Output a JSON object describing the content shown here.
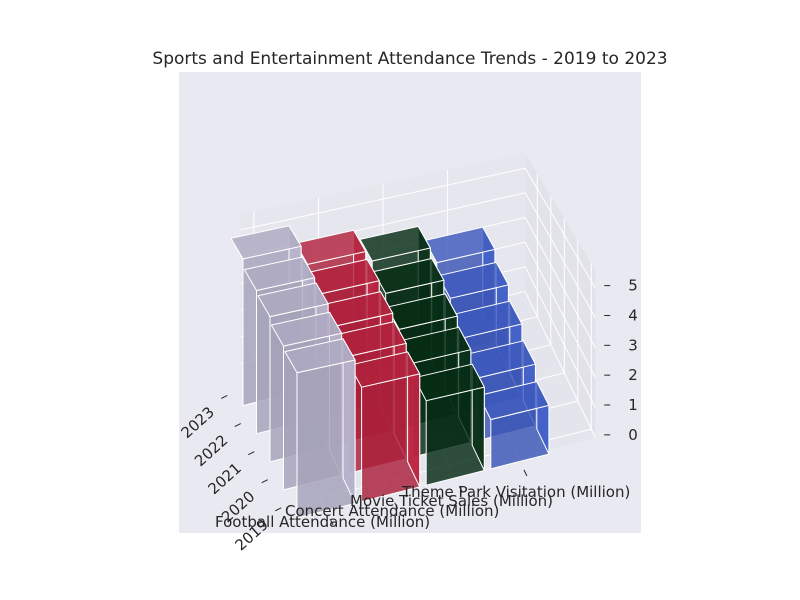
{
  "chart_data": {
    "type": "bar",
    "title": "Sports and Entertainment Attendance Trends - 2019 to 2023",
    "categories": [
      "2019",
      "2020",
      "2021",
      "2022",
      "2023"
    ],
    "series": [
      {
        "name": "Football Attendance (Million)",
        "values": [
          4.5,
          4.6,
          4.8,
          4.9,
          5.2
        ],
        "color": "#a5a2b9"
      },
      {
        "name": "Concert Attendance (Million)",
        "values": [
          3.6,
          3.8,
          4.0,
          4.3,
          4.5
        ],
        "color": "#a9203a"
      },
      {
        "name": "Movie Ticket Sales (Million)",
        "values": [
          2.7,
          3.1,
          3.4,
          3.8,
          4.1
        ],
        "color": "#062b14"
      },
      {
        "name": "Theme Park Visitation (Million)",
        "values": [
          1.6,
          2.1,
          2.6,
          3.1,
          3.5
        ],
        "color": "#3a55b4"
      }
    ],
    "zlim": [
      0,
      5
    ],
    "zticks": [
      "0",
      "1",
      "2",
      "3",
      "4",
      "5"
    ],
    "grid": true
  }
}
